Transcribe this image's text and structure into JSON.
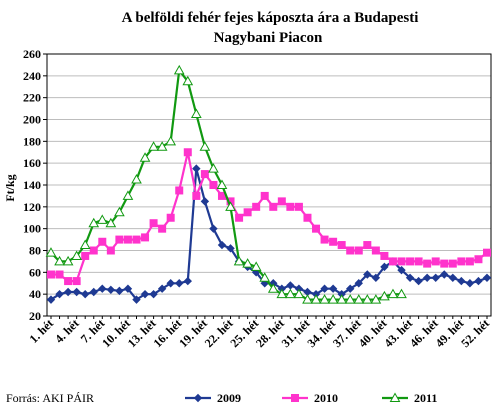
{
  "source": "Forrás: AKI PÁIR",
  "chart_data": {
    "type": "line",
    "title": "A belföldi fehér fejes káposzta ára a Budapesti",
    "subtitle": "Nagybani Piacon",
    "ylabel": "Ft/kg",
    "xlabel": "",
    "ylim": [
      20,
      260
    ],
    "yticks": [
      20,
      40,
      60,
      80,
      100,
      120,
      140,
      160,
      180,
      200,
      220,
      240,
      260
    ],
    "grid": true,
    "legend": "bottom",
    "x": [
      1,
      2,
      3,
      4,
      5,
      6,
      7,
      8,
      9,
      10,
      11,
      12,
      13,
      14,
      15,
      16,
      17,
      18,
      19,
      20,
      21,
      22,
      23,
      24,
      25,
      26,
      27,
      28,
      29,
      30,
      31,
      32,
      33,
      34,
      35,
      36,
      37,
      38,
      39,
      40,
      41,
      42,
      43,
      44,
      45,
      46,
      47,
      48,
      49,
      50,
      51,
      52
    ],
    "xtick_labels": [
      "1. hét",
      "4. hét",
      "7. hét",
      "10. hét",
      "13. hét",
      "16. hét",
      "19. hét",
      "22. hét",
      "25. hét",
      "28. hét",
      "31. hét",
      "34. hét",
      "37. hét",
      "40. hét",
      "43. hét",
      "46. hét",
      "49. hét",
      "52. hét"
    ],
    "xtick_weeks": [
      1,
      4,
      7,
      10,
      13,
      16,
      19,
      22,
      25,
      28,
      31,
      34,
      37,
      40,
      43,
      46,
      49,
      52
    ],
    "series": [
      {
        "name": "2009",
        "color": "#1f3a93",
        "marker": "diamond",
        "values": [
          35,
          40,
          42,
          42,
          40,
          42,
          45,
          44,
          43,
          45,
          35,
          40,
          40,
          45,
          50,
          50,
          52,
          155,
          125,
          100,
          85,
          82,
          70,
          65,
          60,
          50,
          50,
          45,
          48,
          45,
          42,
          40,
          45,
          45,
          40,
          45,
          50,
          58,
          55,
          65,
          70,
          62,
          55,
          52,
          55,
          55,
          58,
          55,
          52,
          50,
          52,
          55
        ]
      },
      {
        "name": "2010",
        "color": "#ff33cc",
        "marker": "square",
        "values": [
          58,
          58,
          52,
          52,
          75,
          80,
          88,
          80,
          90,
          90,
          90,
          92,
          105,
          100,
          110,
          135,
          170,
          130,
          150,
          140,
          130,
          125,
          110,
          115,
          120,
          130,
          120,
          125,
          120,
          120,
          110,
          100,
          90,
          88,
          85,
          80,
          80,
          85,
          80,
          75,
          70,
          70,
          70,
          70,
          68,
          70,
          68,
          68,
          70,
          70,
          72,
          78
        ]
      },
      {
        "name": "2011",
        "color": "#119911",
        "marker": "triangle",
        "values": [
          78,
          70,
          70,
          75,
          85,
          105,
          108,
          105,
          115,
          130,
          145,
          165,
          175,
          175,
          180,
          245,
          235,
          205,
          175,
          155,
          140,
          120,
          70,
          68,
          65,
          55,
          45,
          40,
          40,
          40,
          35,
          35,
          35,
          35,
          35,
          35,
          35,
          35,
          35,
          38,
          40,
          40,
          null,
          null,
          null,
          null,
          null,
          null,
          null,
          null,
          null,
          null
        ]
      }
    ]
  }
}
